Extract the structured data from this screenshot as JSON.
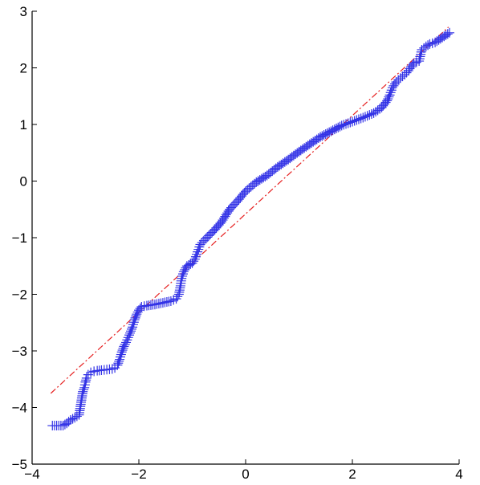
{
  "chart_data": {
    "type": "scatter",
    "title": "",
    "xlabel": "",
    "ylabel": "",
    "xlim": [
      -4,
      4
    ],
    "ylim": [
      -5,
      3
    ],
    "x_ticks": [
      -4,
      -2,
      0,
      2,
      4
    ],
    "y_ticks": [
      -5,
      -4,
      -3,
      -2,
      -1,
      0,
      1,
      2,
      3
    ],
    "x_tick_labels": [
      "−4",
      "−2",
      "0",
      "2",
      "4"
    ],
    "y_tick_labels": [
      "−5",
      "−4",
      "−3",
      "−2",
      "−1",
      "0",
      "1",
      "2",
      "3"
    ],
    "grid": false,
    "legend": "none",
    "colors": {
      "points": "#3232e6",
      "reference_line": "#e62020",
      "axes": "#000000"
    },
    "reference_line": {
      "style": "dash-dot",
      "from": [
        -3.65,
        -3.75
      ],
      "to": [
        3.8,
        2.72
      ]
    },
    "series": [
      {
        "marker": "plus",
        "points": [
          [
            -3.62,
            -4.32
          ],
          [
            -3.42,
            -4.32
          ],
          [
            -3.35,
            -4.28
          ],
          [
            -3.28,
            -4.22
          ],
          [
            -3.2,
            -4.18
          ],
          [
            -3.12,
            -4.13
          ],
          [
            -3.05,
            -3.72
          ],
          [
            -3.02,
            -3.65
          ],
          [
            -3.0,
            -3.55
          ],
          [
            -2.98,
            -3.48
          ],
          [
            -2.95,
            -3.42
          ],
          [
            -2.9,
            -3.38
          ],
          [
            -2.84,
            -3.36
          ],
          [
            -2.78,
            -3.35
          ],
          [
            -2.7,
            -3.34
          ],
          [
            -2.6,
            -3.33
          ],
          [
            -2.5,
            -3.32
          ],
          [
            -2.45,
            -3.3
          ],
          [
            -2.4,
            -3.25
          ],
          [
            -2.36,
            -3.15
          ],
          [
            -2.32,
            -3.02
          ],
          [
            -2.28,
            -2.92
          ],
          [
            -2.24,
            -2.85
          ],
          [
            -2.18,
            -2.72
          ],
          [
            -2.12,
            -2.58
          ],
          [
            -2.08,
            -2.45
          ],
          [
            -2.04,
            -2.35
          ],
          [
            -2.0,
            -2.28
          ],
          [
            -1.95,
            -2.22
          ],
          [
            -1.85,
            -2.2
          ],
          [
            -1.7,
            -2.18
          ],
          [
            -1.55,
            -2.15
          ],
          [
            -1.4,
            -2.12
          ],
          [
            -1.3,
            -2.08
          ],
          [
            -1.25,
            -2.0
          ],
          [
            -1.22,
            -1.85
          ],
          [
            -1.2,
            -1.72
          ],
          [
            -1.16,
            -1.6
          ],
          [
            -1.1,
            -1.5
          ],
          [
            -1.0,
            -1.45
          ],
          [
            -0.95,
            -1.38
          ],
          [
            -0.9,
            -1.25
          ],
          [
            -0.85,
            -1.12
          ],
          [
            -0.75,
            -1.02
          ],
          [
            -0.6,
            -0.88
          ],
          [
            -0.45,
            -0.72
          ],
          [
            -0.3,
            -0.5
          ],
          [
            -0.15,
            -0.35
          ],
          [
            0.0,
            -0.18
          ],
          [
            0.2,
            -0.02
          ],
          [
            0.4,
            0.1
          ],
          [
            0.6,
            0.25
          ],
          [
            0.8,
            0.38
          ],
          [
            1.0,
            0.52
          ],
          [
            1.2,
            0.65
          ],
          [
            1.4,
            0.78
          ],
          [
            1.6,
            0.88
          ],
          [
            1.8,
            0.98
          ],
          [
            2.0,
            1.05
          ],
          [
            2.2,
            1.12
          ],
          [
            2.4,
            1.2
          ],
          [
            2.55,
            1.3
          ],
          [
            2.65,
            1.42
          ],
          [
            2.7,
            1.52
          ],
          [
            2.75,
            1.65
          ],
          [
            2.82,
            1.75
          ],
          [
            2.9,
            1.82
          ],
          [
            2.98,
            1.88
          ],
          [
            3.05,
            1.95
          ],
          [
            3.1,
            2.02
          ],
          [
            3.15,
            2.08
          ],
          [
            3.25,
            2.12
          ],
          [
            3.3,
            2.32
          ],
          [
            3.38,
            2.38
          ],
          [
            3.45,
            2.42
          ],
          [
            3.55,
            2.45
          ],
          [
            3.82,
            2.62
          ]
        ]
      }
    ]
  }
}
